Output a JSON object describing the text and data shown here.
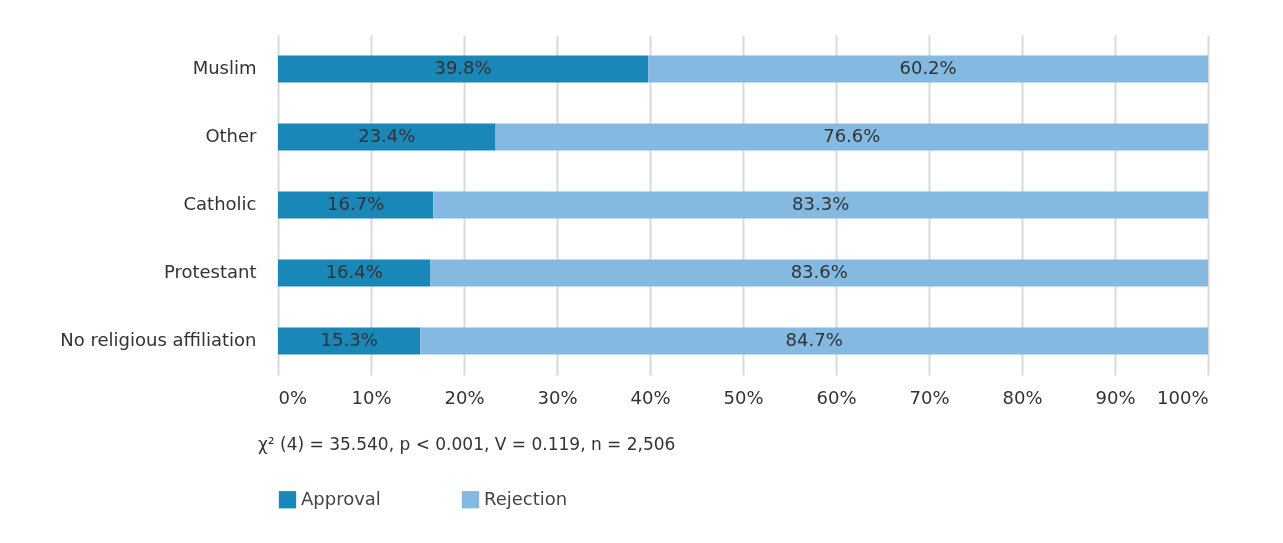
{
  "chart_data": {
    "type": "bar",
    "orientation": "horizontal",
    "stacked": true,
    "categories": [
      "Muslim",
      "Other",
      "Catholic",
      "Protestant",
      "No religious affiliation"
    ],
    "series": [
      {
        "name": "Approval",
        "color": "#1a87b9",
        "values": [
          39.8,
          23.4,
          16.7,
          16.4,
          15.3
        ],
        "value_labels": [
          "39.8%",
          "23.4%",
          "16.7%",
          "16.4%",
          "15.3%"
        ]
      },
      {
        "name": "Rejection",
        "color": "#84b9e1",
        "values": [
          60.2,
          76.6,
          83.3,
          83.6,
          84.7
        ],
        "value_labels": [
          "60.2%",
          "76.6%",
          "83.3%",
          "83.6%",
          "84.7%"
        ]
      }
    ],
    "xlim": [
      0,
      100
    ],
    "xticks": [
      {
        "value": 0,
        "label": "0%"
      },
      {
        "value": 10,
        "label": "10%"
      },
      {
        "value": 20,
        "label": "20%"
      },
      {
        "value": 30,
        "label": "30%"
      },
      {
        "value": 40,
        "label": "40%"
      },
      {
        "value": 50,
        "label": "50%"
      },
      {
        "value": 60,
        "label": "60%"
      },
      {
        "value": 70,
        "label": "70%"
      },
      {
        "value": 80,
        "label": "80%"
      },
      {
        "value": 90,
        "label": "90%"
      },
      {
        "value": 100,
        "label": "100%"
      }
    ],
    "grid": "x",
    "legend": "bottom",
    "annotations": [
      "χ² (4) = 35.540, p < 0.001, V = 0.119, n = 2,506"
    ]
  }
}
